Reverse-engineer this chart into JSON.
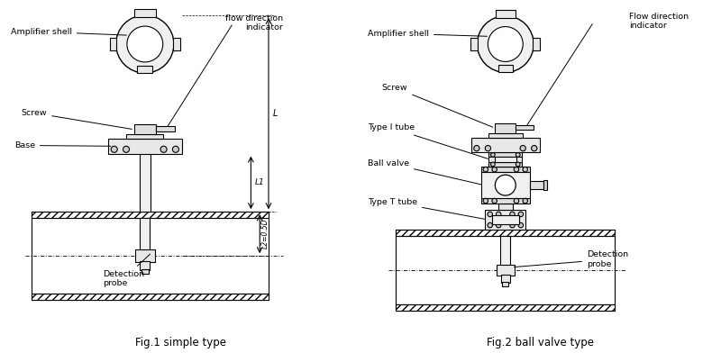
{
  "bg_color": "#ffffff",
  "lc": "#000000",
  "fig1_caption": "Fig.1 simple type",
  "fig2_caption": "Fig.2 ball valve type",
  "fig1_labels": {
    "amplifier_shell": "Amplifier shell",
    "screw": "Screw",
    "base": "Base",
    "detection_probe": "Detection\nprobe",
    "flow_direction": "flow direction\nindicator",
    "L1": "L1",
    "L": "L",
    "L2": "L2=0.5D"
  },
  "fig2_labels": {
    "amplifier_shell": "Amplifier shell",
    "screw": "Screw",
    "type_i_tube": "Type I tube",
    "ball_valve": "Ball valve",
    "type_t_tube": "Type T tube",
    "detection_probe": "Detection\nprobe",
    "flow_direction": "Flow direction\nindicator"
  }
}
